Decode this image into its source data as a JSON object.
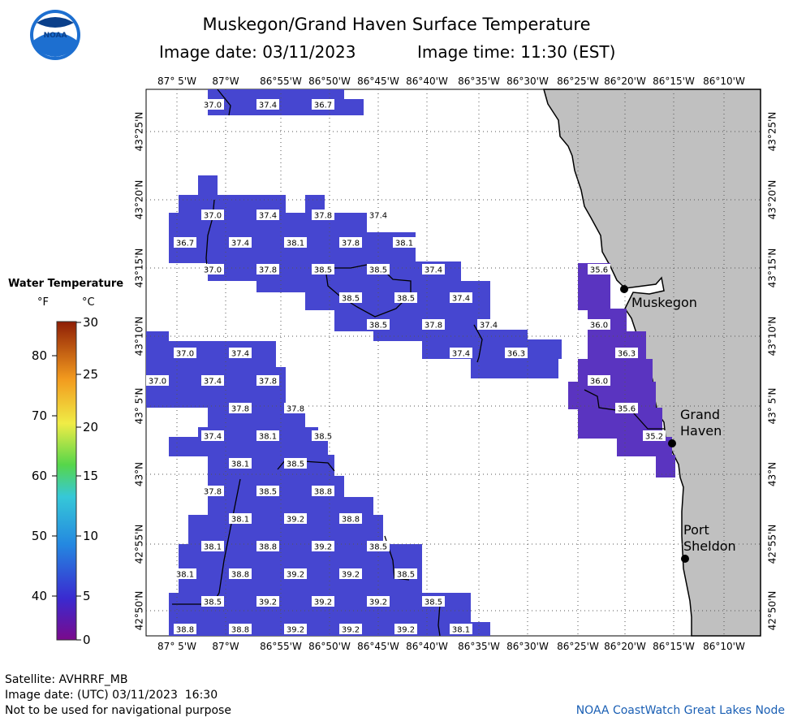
{
  "title": {
    "line1": "Muskegon/Grand Haven Surface Temperature",
    "date": "Image date: 03/11/2023",
    "time": "Image time: 11:30 (EST)"
  },
  "logo": {
    "text": "NOAA",
    "icon": "noaa-logo-icon"
  },
  "colors": {
    "land": "#c0c0c0",
    "water_bg": "#ffffff",
    "data_fill": "#4646d0",
    "grid": "#555555"
  },
  "lon_labels": [
    "87° 5'W",
    "87°W",
    "86°55'W",
    "86°50'W",
    "86°45'W",
    "86°40'W",
    "86°35'W",
    "86°30'W",
    "86°25'W",
    "86°20'W",
    "86°15'W",
    "86°10'W"
  ],
  "lat_labels": [
    "43°25'N",
    "43°20'N",
    "43°15'N",
    "43°10'N",
    "43° 5'N",
    "43°N",
    "42°55'N",
    "42°50'N"
  ],
  "places": [
    {
      "name": "Muskegon"
    },
    {
      "name": "Grand"
    },
    {
      "name": "Haven"
    },
    {
      "name": "Port"
    },
    {
      "name": "Sheldon"
    }
  ],
  "temperature_labels": [
    "37.0",
    "37.4",
    "36.7",
    "37.0",
    "37.4",
    "37.8",
    "37.4",
    "36.7",
    "37.4",
    "38.1",
    "37.8",
    "38.1",
    "37.0",
    "37.8",
    "38.5",
    "38.5",
    "37.4",
    "35.6",
    "38.5",
    "38.5",
    "37.4",
    "38.5",
    "37.8",
    "37.4",
    "36.0",
    "37.0",
    "37.4",
    "37.4",
    "36.3",
    "36.3",
    "37.0",
    "37.4",
    "37.8",
    "36.0",
    "37.8",
    "37.8",
    "35.6",
    "37.4",
    "38.1",
    "38.5",
    "35.2",
    "38.1",
    "38.5",
    "37.8",
    "38.5",
    "38.8",
    "38.1",
    "39.2",
    "38.8",
    "38.1",
    "38.8",
    "39.2",
    "38.5",
    "38.1",
    "38.8",
    "39.2",
    "39.2",
    "38.5",
    "38.5",
    "39.2",
    "39.2",
    "39.2",
    "38.5",
    "38.8",
    "38.8",
    "39.2",
    "39.2",
    "39.2",
    "38.1"
  ],
  "legend": {
    "title": "Water Temperature",
    "unit_f": "°F",
    "unit_c": "°C",
    "f_ticks": [
      "80",
      "70",
      "60",
      "50",
      "40"
    ],
    "c_ticks": [
      "30",
      "25",
      "20",
      "15",
      "10",
      "5",
      "0"
    ]
  },
  "footer": {
    "satellite": "Satellite: AVHRRF_MB",
    "utc_date": "Image date: (UTC) 03/11/2023  16:30",
    "warning": "Not to be used for navigational purpose",
    "credit": "NOAA CoastWatch Great Lakes Node"
  }
}
